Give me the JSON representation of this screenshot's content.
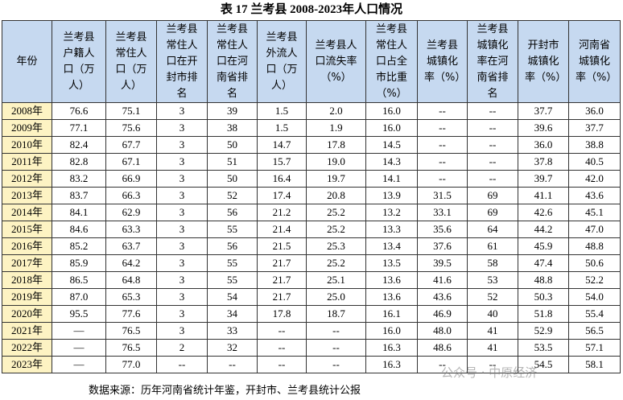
{
  "title": "表 17 兰考县 2008-2023年人口情况",
  "table": {
    "header": [
      "年份",
      "兰考县户籍人口（万人）",
      "兰考县常住人口（万人）",
      "兰考县常住人口在开封市排名",
      "兰考县常住人口在河南省排名",
      "兰考县外流人口（万人）",
      "兰考县人口流失率（%）",
      "兰考县常住人口占全市比重（%）",
      "兰考县城镇化率（%）",
      "兰考县城镇化率在河南省排名",
      "开封市城镇化率（%）",
      "河南省城镇化率（%）"
    ],
    "rows": [
      [
        "2008年",
        "76.6",
        "75.1",
        "3",
        "39",
        "1.5",
        "2.0",
        "16.0",
        "--",
        "--",
        "37.7",
        "36.0"
      ],
      [
        "2009年",
        "77.1",
        "75.6",
        "3",
        "38",
        "1.5",
        "1.9",
        "16.0",
        "--",
        "--",
        "39.6",
        "37.7"
      ],
      [
        "2010年",
        "82.4",
        "67.7",
        "3",
        "50",
        "14.7",
        "17.8",
        "14.5",
        "--",
        "--",
        "36.0",
        "38.8"
      ],
      [
        "2011年",
        "82.8",
        "67.1",
        "3",
        "51",
        "15.7",
        "19.0",
        "14.3",
        "--",
        "--",
        "37.8",
        "40.5"
      ],
      [
        "2012年",
        "83.2",
        "66.9",
        "3",
        "50",
        "16.4",
        "19.7",
        "14.1",
        "--",
        "--",
        "39.7",
        "42.0"
      ],
      [
        "2013年",
        "83.7",
        "66.3",
        "3",
        "52",
        "17.4",
        "20.8",
        "13.9",
        "31.5",
        "69",
        "41.1",
        "43.6"
      ],
      [
        "2014年",
        "84.1",
        "62.9",
        "3",
        "56",
        "21.2",
        "25.2",
        "13.2",
        "33.1",
        "69",
        "42.6",
        "45.1"
      ],
      [
        "2015年",
        "84.6",
        "63.3",
        "3",
        "55",
        "21.4",
        "25.2",
        "13.3",
        "35.6",
        "64",
        "44.2",
        "47.0"
      ],
      [
        "2016年",
        "85.2",
        "63.7",
        "3",
        "56",
        "21.5",
        "25.3",
        "13.4",
        "37.6",
        "61",
        "45.9",
        "48.8"
      ],
      [
        "2017年",
        "85.9",
        "64.2",
        "3",
        "55",
        "21.7",
        "25.2",
        "13.5",
        "39.5",
        "58",
        "47.4",
        "50.6"
      ],
      [
        "2018年",
        "86.5",
        "64.8",
        "3",
        "55",
        "21.7",
        "25.1",
        "13.6",
        "41.6",
        "53",
        "48.8",
        "52.2"
      ],
      [
        "2019年",
        "87.0",
        "65.3",
        "3",
        "54",
        "21.7",
        "25.0",
        "13.6",
        "43.6",
        "52",
        "50.3",
        "54.0"
      ],
      [
        "2020年",
        "95.5",
        "77.6",
        "3",
        "34",
        "17.8",
        "18.7",
        "16.1",
        "46.9",
        "40",
        "51.8",
        "55.4"
      ],
      [
        "2021年",
        "—",
        "76.5",
        "3",
        "33",
        "--",
        "--",
        "16.0",
        "48.0",
        "41",
        "52.9",
        "56.5"
      ],
      [
        "2022年",
        "—",
        "76.5",
        "2",
        "32",
        "--",
        "--",
        "16.3",
        "48.6",
        "41",
        "53.5",
        "57.1"
      ],
      [
        "2023年",
        "—",
        "77.0",
        "--",
        "--",
        "--",
        "--",
        "16.3",
        "--",
        "--",
        "54.5",
        "58.1"
      ]
    ]
  },
  "source": "数据来源：历年河南省统计年鉴，开封市、兰考县统计公报",
  "watermark": "公众号 · 中原经济"
}
